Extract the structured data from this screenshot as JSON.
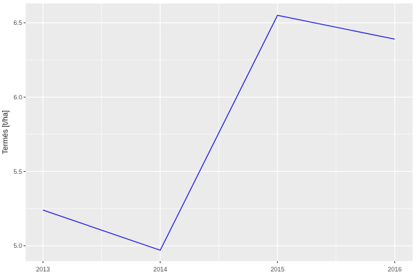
{
  "figure": {
    "background": "#FFFFFF",
    "panel_background": "#EBEBEB",
    "grid_major_color": "#FFFFFF",
    "grid_minor_color": "#FFFFFF",
    "tick_mark_color": "#333333",
    "tick_label_color": "#4D4D4D",
    "axis_title_color": "#1A1A1A",
    "line_color": "#1A1AE8"
  },
  "chart_data": {
    "type": "line",
    "title": "",
    "xlabel": "",
    "ylabel": "Termés [t/ha]",
    "x": [
      2013,
      2014,
      2015,
      2016
    ],
    "values": [
      5.24,
      4.97,
      6.55,
      6.39
    ],
    "x_ticks": [
      2013,
      2014,
      2015,
      2016
    ],
    "x_tick_labels": [
      "2013",
      "2014",
      "2015",
      "2016"
    ],
    "y_ticks": [
      5.0,
      5.5,
      6.0,
      6.5
    ],
    "y_tick_labels": [
      "5.0",
      "5.5",
      "6.0",
      "6.5"
    ],
    "x_minor": [
      2013.5,
      2014.5,
      2015.5
    ],
    "y_minor": [
      5.25,
      5.75,
      6.25
    ],
    "xlim": [
      2012.852,
      2016.152
    ],
    "ylim": [
      4.897,
      6.63
    ],
    "grid": true,
    "legend": false,
    "style": "ggplot-grey-theme"
  }
}
